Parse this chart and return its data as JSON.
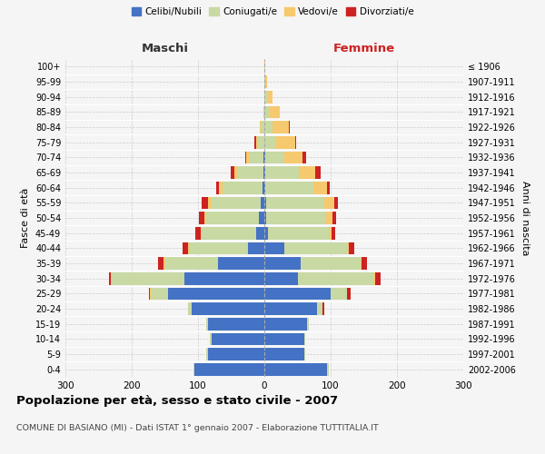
{
  "age_groups": [
    "0-4",
    "5-9",
    "10-14",
    "15-19",
    "20-24",
    "25-29",
    "30-34",
    "35-39",
    "40-44",
    "45-49",
    "50-54",
    "55-59",
    "60-64",
    "65-69",
    "70-74",
    "75-79",
    "80-84",
    "85-89",
    "90-94",
    "95-99",
    "100+"
  ],
  "birth_years": [
    "2002-2006",
    "1997-2001",
    "1992-1996",
    "1987-1991",
    "1982-1986",
    "1977-1981",
    "1972-1976",
    "1967-1971",
    "1962-1966",
    "1957-1961",
    "1952-1956",
    "1947-1951",
    "1942-1946",
    "1937-1941",
    "1932-1936",
    "1927-1931",
    "1922-1926",
    "1917-1921",
    "1912-1916",
    "1907-1911",
    "≤ 1906"
  ],
  "male": {
    "celibi": [
      105,
      85,
      80,
      85,
      110,
      145,
      120,
      70,
      25,
      12,
      8,
      5,
      3,
      2,
      2,
      0,
      0,
      0,
      0,
      0,
      0
    ],
    "coniugati": [
      2,
      2,
      2,
      2,
      5,
      25,
      110,
      80,
      88,
      82,
      80,
      75,
      60,
      38,
      20,
      10,
      5,
      2,
      0,
      0,
      0
    ],
    "vedovi": [
      0,
      0,
      0,
      0,
      0,
      2,
      2,
      2,
      2,
      2,
      2,
      5,
      5,
      5,
      5,
      3,
      2,
      0,
      0,
      0,
      0
    ],
    "divorziati": [
      0,
      0,
      0,
      0,
      0,
      2,
      2,
      8,
      8,
      8,
      8,
      10,
      5,
      5,
      2,
      2,
      0,
      0,
      0,
      0,
      0
    ]
  },
  "female": {
    "nubili": [
      95,
      60,
      60,
      65,
      80,
      100,
      50,
      55,
      30,
      5,
      3,
      3,
      2,
      2,
      2,
      0,
      0,
      0,
      0,
      0,
      0
    ],
    "coniugate": [
      2,
      2,
      2,
      2,
      8,
      25,
      115,
      90,
      95,
      92,
      90,
      88,
      72,
      50,
      28,
      18,
      12,
      8,
      5,
      2,
      0
    ],
    "vedove": [
      0,
      0,
      0,
      0,
      0,
      0,
      2,
      2,
      3,
      5,
      10,
      15,
      20,
      25,
      28,
      28,
      25,
      15,
      8,
      2,
      2
    ],
    "divorziate": [
      0,
      0,
      0,
      0,
      2,
      5,
      8,
      8,
      8,
      5,
      5,
      5,
      5,
      8,
      5,
      2,
      2,
      0,
      0,
      0,
      0
    ]
  },
  "colors": {
    "celibi": "#4472c4",
    "coniugati": "#c8d9a4",
    "vedovi": "#f7c96e",
    "divorziati": "#cc2222"
  },
  "title": "Popolazione per età, sesso e stato civile - 2007",
  "subtitle": "COMUNE DI BASIANO (MI) - Dati ISTAT 1° gennaio 2007 - Elaborazione TUTTITALIA.IT",
  "xlabel_left": "Maschi",
  "xlabel_right": "Femmine",
  "ylabel_left": "Fasce di età",
  "ylabel_right": "Anni di nascita",
  "xlim": 300,
  "legend_labels": [
    "Celibi/Nubili",
    "Coniugati/e",
    "Vedovi/e",
    "Divorziati/e"
  ],
  "bg_color": "#f5f5f5",
  "grid_color": "#cccccc"
}
